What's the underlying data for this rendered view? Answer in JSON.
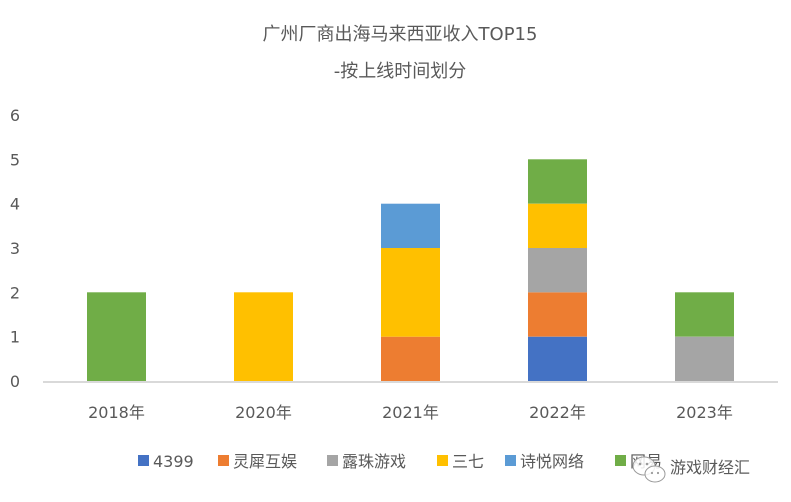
{
  "chart_data": {
    "type": "bar",
    "stacked": true,
    "title": [
      "广州厂商出海马来西亚收入TOP15",
      "-按上线时间划分"
    ],
    "xlabel": "",
    "ylabel": "",
    "categories": [
      "2018年",
      "2020年",
      "2021年",
      "2022年",
      "2023年"
    ],
    "ylim": [
      0,
      6
    ],
    "yticks": [
      0,
      1,
      2,
      3,
      4,
      5,
      6
    ],
    "grid": false,
    "legend_position": "bottom",
    "series": [
      {
        "name": "4399",
        "color": "#4472C4",
        "values": [
          0,
          0,
          0,
          1,
          0
        ]
      },
      {
        "name": "灵犀互娱",
        "color": "#ED7D31",
        "values": [
          0,
          0,
          1,
          1,
          0
        ]
      },
      {
        "name": "露珠游戏",
        "color": "#A5A5A5",
        "values": [
          0,
          0,
          0,
          1,
          1
        ]
      },
      {
        "name": "三七",
        "color": "#FFC000",
        "values": [
          0,
          2,
          2,
          1,
          0
        ]
      },
      {
        "name": "诗悦网络",
        "color": "#5B9BD5",
        "values": [
          0,
          0,
          1,
          0,
          0
        ]
      },
      {
        "name": "网易",
        "color": "#70AD47",
        "values": [
          2,
          0,
          0,
          1,
          1
        ]
      }
    ]
  },
  "watermark": {
    "text": "游戏财经汇",
    "icon": "wechat-icon"
  }
}
